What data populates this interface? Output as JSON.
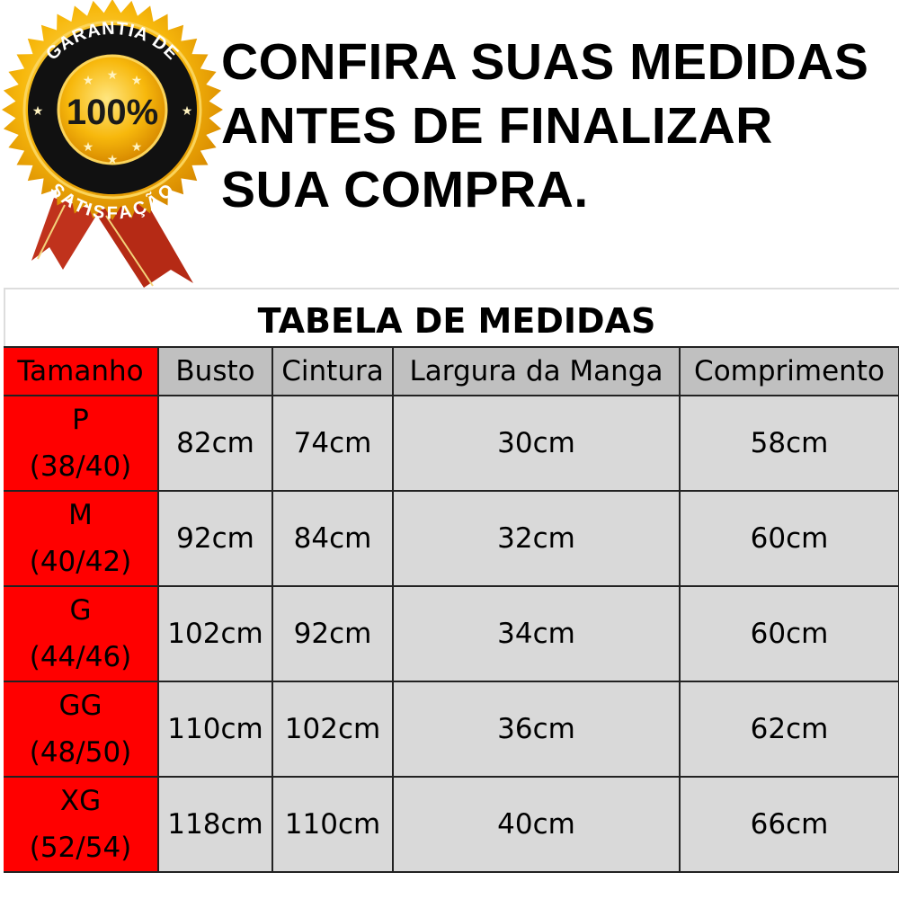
{
  "badge": {
    "top_text": "GARANTIA DE",
    "center_text": "100%",
    "bottom_text": "SATISFAÇÃO",
    "colors": {
      "gold": "#f5b60a",
      "ring": "#111111",
      "ribbon": "#c0321c"
    }
  },
  "headline": {
    "lines": [
      "CONFIRA SUAS MEDIDAS",
      "ANTES DE FINALIZAR",
      "SUA COMPRA."
    ]
  },
  "size_table": {
    "title": "TABELA DE MEDIDAS",
    "headers": [
      "Tamanho",
      "Busto",
      "Cintura",
      "Largura da Manga",
      "Comprimento"
    ],
    "rows": [
      {
        "size": "P",
        "range": "(38/40)",
        "busto": "82cm",
        "cintura": "74cm",
        "manga": "30cm",
        "comprimento": "58cm"
      },
      {
        "size": "M",
        "range": "(40/42)",
        "busto": "92cm",
        "cintura": "84cm",
        "manga": "32cm",
        "comprimento": "60cm"
      },
      {
        "size": "G",
        "range": "(44/46)",
        "busto": "102cm",
        "cintura": "92cm",
        "manga": "34cm",
        "comprimento": "60cm"
      },
      {
        "size": "GG",
        "range": "(48/50)",
        "busto": "110cm",
        "cintura": "102cm",
        "manga": "36cm",
        "comprimento": "62cm"
      },
      {
        "size": "XG",
        "range": "(52/54)",
        "busto": "118cm",
        "cintura": "110cm",
        "manga": "40cm",
        "comprimento": "66cm"
      }
    ],
    "colors": {
      "size_column": "#ff0000",
      "header": "#c0c0c0",
      "cell": "#d9d9d9"
    }
  }
}
